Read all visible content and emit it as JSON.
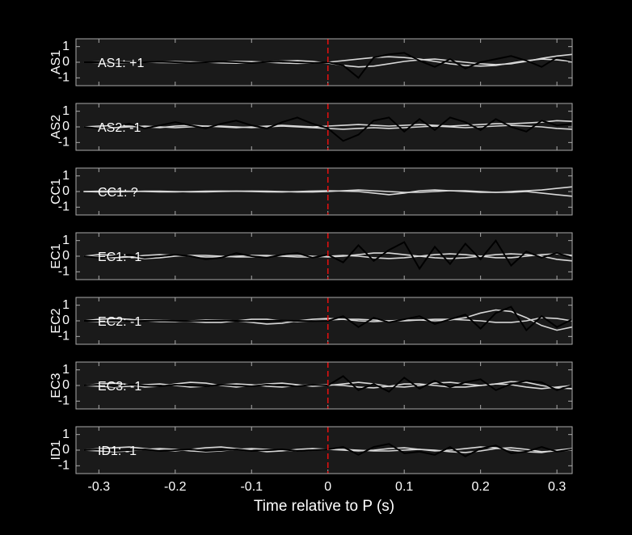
{
  "chart_data": [
    {
      "type": "line",
      "ylabel": "AS1",
      "annotation": "AS1: +1",
      "annotation_color": "#cc1111",
      "vline": 0,
      "xlim": [
        -0.33,
        0.32
      ],
      "ylim": [
        -1.5,
        1.5
      ],
      "yticks": [
        -1,
        0,
        1
      ],
      "xticks": [
        -0.3,
        -0.2,
        -0.1,
        0,
        0.1,
        0.2,
        0.3
      ],
      "x": [
        -0.32,
        -0.3,
        -0.28,
        -0.26,
        -0.24,
        -0.22,
        -0.2,
        -0.18,
        -0.16,
        -0.14,
        -0.12,
        -0.1,
        -0.08,
        -0.06,
        -0.04,
        -0.02,
        0,
        0.02,
        0.04,
        0.06,
        0.08,
        0.1,
        0.12,
        0.14,
        0.16,
        0.18,
        0.2,
        0.22,
        0.24,
        0.26,
        0.28,
        0.3,
        0.32
      ],
      "series": [
        {
          "color": "#d8d8d8",
          "values": [
            0,
            0.02,
            0.03,
            0.02,
            0,
            -0.02,
            -0.03,
            -0.02,
            0,
            0.03,
            0.05,
            0.04,
            0,
            -0.05,
            -0.08,
            -0.05,
            0,
            0.1,
            0.2,
            0.3,
            0.35,
            0.3,
            0.2,
            0.05,
            -0.1,
            -0.2,
            -0.25,
            -0.2,
            -0.05,
            0.1,
            0.2,
            0.15,
            0.05
          ]
        },
        {
          "color": "#d8d8d8",
          "values": [
            0,
            -0.02,
            -0.03,
            -0.02,
            0,
            0.02,
            0.04,
            0.02,
            0,
            -0.04,
            -0.06,
            -0.03,
            0.02,
            0.08,
            0.1,
            0.05,
            -0.05,
            -0.2,
            -0.3,
            -0.25,
            -0.1,
            0.05,
            0.15,
            0.2,
            0.1,
            0,
            -0.1,
            -0.15,
            -0.1,
            0.05,
            0.25,
            0.4,
            0.5
          ]
        },
        {
          "color": "#000000",
          "values": [
            0,
            0,
            0.02,
            -0.02,
            0,
            0.03,
            0,
            -0.04,
            0,
            0.04,
            0,
            -0.05,
            0.02,
            0.05,
            0,
            -0.05,
            0,
            -0.2,
            -1.0,
            0.3,
            0.5,
            0.6,
            0.1,
            -0.3,
            0.2,
            -0.4,
            0,
            0.2,
            0.4,
            0.1,
            -0.3,
            0.3,
            0.1
          ]
        }
      ]
    },
    {
      "type": "line",
      "ylabel": "AS2",
      "annotation": "AS2: -1",
      "annotation_color": "#1a1aa6",
      "vline": 0,
      "xlim": [
        -0.33,
        0.32
      ],
      "ylim": [
        -1.5,
        1.5
      ],
      "yticks": [
        -1,
        0,
        1
      ],
      "xticks": [
        -0.3,
        -0.2,
        -0.1,
        0,
        0.1,
        0.2,
        0.3
      ],
      "x": [
        -0.32,
        -0.3,
        -0.28,
        -0.26,
        -0.24,
        -0.22,
        -0.2,
        -0.18,
        -0.16,
        -0.14,
        -0.12,
        -0.1,
        -0.08,
        -0.06,
        -0.04,
        -0.02,
        0,
        0.02,
        0.04,
        0.06,
        0.08,
        0.1,
        0.12,
        0.14,
        0.16,
        0.18,
        0.2,
        0.22,
        0.24,
        0.26,
        0.28,
        0.3,
        0.32
      ],
      "series": [
        {
          "color": "#d8d8d8",
          "values": [
            0,
            0.05,
            0.08,
            0.05,
            0,
            -0.05,
            0.05,
            0.1,
            0.05,
            0,
            -0.05,
            0,
            0.05,
            0.1,
            0.05,
            0,
            0.05,
            0.1,
            0.15,
            0.1,
            0.05,
            0.1,
            0.15,
            0.1,
            0.05,
            0.1,
            0.15,
            0.2,
            0.2,
            0.25,
            0.3,
            0.4,
            0.35
          ]
        },
        {
          "color": "#d8d8d8",
          "values": [
            0,
            -0.05,
            -0.05,
            0,
            0.05,
            0,
            -0.05,
            0,
            0.05,
            0.05,
            0,
            -0.05,
            0,
            0.05,
            0,
            -0.05,
            -0.1,
            -0.15,
            -0.1,
            -0.05,
            -0.1,
            -0.05,
            0,
            0.05,
            0,
            -0.05,
            0,
            0.05,
            0.1,
            0.05,
            0,
            -0.1,
            -0.15
          ]
        },
        {
          "color": "#000000",
          "values": [
            0,
            -0.1,
            0.05,
            0.2,
            -0.1,
            0.1,
            0.3,
            0.1,
            -0.1,
            0.2,
            0.4,
            0.1,
            -0.1,
            0.3,
            0.6,
            0.2,
            -0.1,
            -0.9,
            -0.5,
            0.4,
            0.6,
            -0.3,
            0.5,
            -0.2,
            0.6,
            0.3,
            -0.2,
            0.5,
            0,
            -0.3,
            0.4,
            0.1,
            0.2
          ]
        }
      ]
    },
    {
      "type": "line",
      "ylabel": "CC1",
      "annotation": "CC1: ?",
      "annotation_color": "#8c8c8c",
      "vline": 0,
      "xlim": [
        -0.33,
        0.32
      ],
      "ylim": [
        -1.5,
        1.5
      ],
      "yticks": [
        -1,
        0,
        1
      ],
      "xticks": [
        -0.3,
        -0.2,
        -0.1,
        0,
        0.1,
        0.2,
        0.3
      ],
      "x": [
        -0.32,
        -0.3,
        -0.28,
        -0.26,
        -0.24,
        -0.22,
        -0.2,
        -0.18,
        -0.16,
        -0.14,
        -0.12,
        -0.1,
        -0.08,
        -0.06,
        -0.04,
        -0.02,
        0,
        0.02,
        0.04,
        0.06,
        0.08,
        0.1,
        0.12,
        0.14,
        0.16,
        0.18,
        0.2,
        0.22,
        0.24,
        0.26,
        0.28,
        0.3,
        0.32
      ],
      "series": [
        {
          "color": "#d8d8d8",
          "values": [
            0,
            0.02,
            0.03,
            0.02,
            0,
            -0.02,
            -0.02,
            0,
            0.02,
            0.03,
            0.02,
            0,
            -0.02,
            -0.03,
            0,
            0.03,
            0.05,
            0.03,
            0,
            -0.1,
            -0.2,
            -0.1,
            0.05,
            0.1,
            0.05,
            0,
            -0.05,
            -0.05,
            0,
            0.05,
            0.1,
            0.2,
            0.3
          ]
        },
        {
          "color": "#d8d8d8",
          "values": [
            0,
            -0.02,
            -0.02,
            0,
            0.02,
            0.02,
            0,
            -0.02,
            -0.02,
            0,
            0.02,
            0.03,
            0.02,
            0,
            -0.03,
            -0.03,
            0,
            0.05,
            0.1,
            0.05,
            0,
            -0.05,
            -0.05,
            0,
            0.05,
            0.05,
            0,
            -0.05,
            -0.05,
            0,
            -0.1,
            -0.2,
            -0.3
          ]
        }
      ]
    },
    {
      "type": "line",
      "ylabel": "EC1",
      "annotation": "EC1: -1",
      "annotation_color": "#1a1aa6",
      "vline": 0,
      "xlim": [
        -0.33,
        0.32
      ],
      "ylim": [
        -1.5,
        1.5
      ],
      "yticks": [
        -1,
        0,
        1
      ],
      "xticks": [
        -0.3,
        -0.2,
        -0.1,
        0,
        0.1,
        0.2,
        0.3
      ],
      "x": [
        -0.32,
        -0.3,
        -0.28,
        -0.26,
        -0.24,
        -0.22,
        -0.2,
        -0.18,
        -0.16,
        -0.14,
        -0.12,
        -0.1,
        -0.08,
        -0.06,
        -0.04,
        -0.02,
        0,
        0.02,
        0.04,
        0.06,
        0.08,
        0.1,
        0.12,
        0.14,
        0.16,
        0.18,
        0.2,
        0.22,
        0.24,
        0.26,
        0.28,
        0.3,
        0.32
      ],
      "series": [
        {
          "color": "#d8d8d8",
          "values": [
            0,
            0.1,
            0.05,
            -0.05,
            -0.15,
            -0.1,
            0,
            0.05,
            0.05,
            0,
            -0.05,
            -0.05,
            0,
            0.05,
            0.05,
            0,
            -0.05,
            0,
            0.1,
            0.2,
            0.2,
            0.1,
            0,
            -0.1,
            -0.15,
            -0.1,
            0,
            0.1,
            0.15,
            0.1,
            0,
            -0.2,
            -0.3
          ]
        },
        {
          "color": "#d8d8d8",
          "values": [
            0,
            -0.05,
            -0.1,
            -0.05,
            0.05,
            0.1,
            0.05,
            0,
            -0.05,
            -0.05,
            0,
            0.05,
            0.05,
            0,
            -0.05,
            -0.05,
            0,
            0.05,
            0,
            -0.1,
            -0.15,
            -0.1,
            0,
            0.1,
            0.15,
            0.1,
            0,
            -0.1,
            -0.1,
            0,
            0.1,
            0.15,
            0.05
          ]
        },
        {
          "color": "#000000",
          "values": [
            0,
            -0.1,
            0,
            0.1,
            -0.1,
            0,
            0.1,
            0,
            -0.2,
            -0.1,
            0.2,
            0,
            -0.1,
            0.1,
            0.2,
            -0.1,
            0.1,
            -0.4,
            0.7,
            -0.3,
            0.4,
            0.9,
            -0.8,
            0.6,
            -0.5,
            0.8,
            -0.2,
            1.0,
            -0.6,
            0.3,
            -0.1,
            0.2,
            -0.1
          ]
        }
      ]
    },
    {
      "type": "line",
      "ylabel": "EC2",
      "annotation": "EC2: -1",
      "annotation_color": "#1a1aa6",
      "vline": 0,
      "xlim": [
        -0.33,
        0.32
      ],
      "ylim": [
        -1.5,
        1.5
      ],
      "yticks": [
        -1,
        0,
        1
      ],
      "xticks": [
        -0.3,
        -0.2,
        -0.1,
        0,
        0.1,
        0.2,
        0.3
      ],
      "x": [
        -0.32,
        -0.3,
        -0.28,
        -0.26,
        -0.24,
        -0.22,
        -0.2,
        -0.18,
        -0.16,
        -0.14,
        -0.12,
        -0.1,
        -0.08,
        -0.06,
        -0.04,
        -0.02,
        0,
        0.02,
        0.04,
        0.06,
        0.08,
        0.1,
        0.12,
        0.14,
        0.16,
        0.18,
        0.2,
        0.22,
        0.24,
        0.26,
        0.28,
        0.3,
        0.32
      ],
      "series": [
        {
          "color": "#d8d8d8",
          "values": [
            0,
            0.1,
            0.15,
            0.1,
            0,
            -0.05,
            -0.05,
            0,
            0.05,
            0.05,
            0,
            -0.1,
            -0.2,
            -0.15,
            0,
            0.1,
            0.15,
            0.1,
            0,
            -0.05,
            0,
            0.05,
            0.05,
            0,
            0.05,
            0.2,
            0.5,
            0.7,
            0.6,
            0.2,
            -0.3,
            -0.6,
            -0.4
          ]
        },
        {
          "color": "#d8d8d8",
          "values": [
            0,
            -0.05,
            -0.05,
            0,
            0.05,
            0.05,
            0,
            -0.05,
            -0.1,
            -0.1,
            0,
            0.1,
            0.1,
            0,
            -0.05,
            0,
            0.05,
            0.1,
            0.1,
            0.05,
            0,
            0,
            0.05,
            0.1,
            0.1,
            0.05,
            0,
            -0.1,
            -0.1,
            0,
            0.2,
            0.15,
            0
          ]
        },
        {
          "color": "#000000",
          "values": [
            0,
            0,
            0.02,
            -0.02,
            0,
            0.02,
            0,
            -0.02,
            0,
            0.02,
            0,
            -0.02,
            0,
            0.02,
            0,
            -0.02,
            0,
            0.3,
            -0.4,
            0.2,
            -0.1,
            0.1,
            0.3,
            -0.2,
            0.1,
            0.4,
            -0.5,
            0.5,
            0.9,
            -0.6,
            0.3,
            -0.4,
            0.1
          ]
        }
      ]
    },
    {
      "type": "line",
      "ylabel": "EC3",
      "annotation": "EC3: -1",
      "annotation_color": "#1a1aa6",
      "vline": 0,
      "xlim": [
        -0.33,
        0.32
      ],
      "ylim": [
        -1.5,
        1.5
      ],
      "yticks": [
        -1,
        0,
        1
      ],
      "xticks": [
        -0.3,
        -0.2,
        -0.1,
        0,
        0.1,
        0.2,
        0.3
      ],
      "x": [
        -0.32,
        -0.3,
        -0.28,
        -0.26,
        -0.24,
        -0.22,
        -0.2,
        -0.18,
        -0.16,
        -0.14,
        -0.12,
        -0.1,
        -0.08,
        -0.06,
        -0.04,
        -0.02,
        0,
        0.02,
        0.04,
        0.06,
        0.08,
        0.1,
        0.12,
        0.14,
        0.16,
        0.18,
        0.2,
        0.22,
        0.24,
        0.26,
        0.28,
        0.3,
        0.32
      ],
      "series": [
        {
          "color": "#d8d8d8",
          "values": [
            0,
            0.1,
            0.15,
            0.05,
            -0.1,
            -0.05,
            0.1,
            0.2,
            0.15,
            0,
            -0.1,
            0,
            0.1,
            0.15,
            0.05,
            -0.05,
            0,
            0.1,
            0.2,
            0.1,
            -0.05,
            -0.1,
            0,
            0.15,
            0.2,
            0.1,
            0,
            0.1,
            0.25,
            0.2,
            0,
            -0.15,
            -0.2
          ]
        },
        {
          "color": "#d8d8d8",
          "values": [
            0,
            -0.05,
            -0.1,
            -0.05,
            0.05,
            0.1,
            0,
            -0.1,
            -0.05,
            0.05,
            0.1,
            0.05,
            -0.05,
            -0.1,
            0,
            0.05,
            0.05,
            0,
            -0.1,
            -0.15,
            -0.05,
            0.1,
            0.1,
            0,
            -0.1,
            -0.1,
            0,
            0.1,
            0.05,
            -0.1,
            -0.2,
            -0.1,
            0
          ]
        },
        {
          "color": "#000000",
          "values": [
            0,
            0.05,
            -0.05,
            0.05,
            0,
            -0.05,
            0.05,
            0,
            -0.05,
            0.05,
            0,
            -0.05,
            0.05,
            0,
            -0.05,
            0.05,
            0,
            0.6,
            -0.3,
            0.1,
            -0.4,
            0.5,
            -0.2,
            0.3,
            -0.1,
            0.2,
            0.4,
            -0.3,
            0.1,
            0.3,
            0.2,
            -0.3,
            0
          ]
        }
      ]
    },
    {
      "type": "line",
      "ylabel": "ID1",
      "annotation": "ID1: -1",
      "annotation_color": "#1a1aa6",
      "vline": 0,
      "xlabel": "Time relative to P (s)",
      "xlim": [
        -0.33,
        0.32
      ],
      "ylim": [
        -1.5,
        1.5
      ],
      "yticks": [
        -1,
        0,
        1
      ],
      "xticks": [
        -0.3,
        -0.2,
        -0.1,
        0,
        0.1,
        0.2,
        0.3
      ],
      "x": [
        -0.32,
        -0.3,
        -0.28,
        -0.26,
        -0.24,
        -0.22,
        -0.2,
        -0.18,
        -0.16,
        -0.14,
        -0.12,
        -0.1,
        -0.08,
        -0.06,
        -0.04,
        -0.02,
        0,
        0.02,
        0.04,
        0.06,
        0.08,
        0.1,
        0.12,
        0.14,
        0.16,
        0.18,
        0.2,
        0.22,
        0.24,
        0.26,
        0.28,
        0.3,
        0.32
      ],
      "series": [
        {
          "color": "#d8d8d8",
          "values": [
            0,
            0.1,
            0.15,
            0.2,
            0.1,
            0,
            -0.05,
            0.05,
            0.15,
            0.2,
            0.1,
            0,
            -0.1,
            -0.05,
            0.05,
            0.1,
            0.05,
            0,
            -0.05,
            0,
            0.1,
            0.15,
            0.05,
            -0.05,
            0,
            0.1,
            0.2,
            0.15,
            0,
            -0.1,
            -0.15,
            0,
            0.1
          ]
        },
        {
          "color": "#d8d8d8",
          "values": [
            0,
            -0.05,
            -0.1,
            -0.05,
            0.05,
            0.1,
            0.05,
            -0.05,
            -0.1,
            -0.05,
            0.05,
            0.1,
            0.05,
            0,
            -0.05,
            0,
            0.05,
            0.05,
            0,
            -0.05,
            -0.05,
            0,
            0.05,
            0,
            -0.1,
            -0.15,
            -0.05,
            0.1,
            0.15,
            0.05,
            -0.1,
            -0.05,
            0
          ]
        },
        {
          "color": "#000000",
          "values": [
            0,
            0.05,
            -0.05,
            0,
            0.05,
            -0.05,
            0,
            0.05,
            -0.05,
            0,
            0.05,
            -0.05,
            0,
            0.05,
            -0.05,
            0,
            0.05,
            0.2,
            -0.3,
            0.2,
            0.4,
            -0.2,
            -0.1,
            -0.3,
            0.2,
            -0.4,
            0.1,
            0.3,
            -0.2,
            -0.1,
            0.2,
            -0.1,
            0.05
          ]
        }
      ]
    }
  ]
}
